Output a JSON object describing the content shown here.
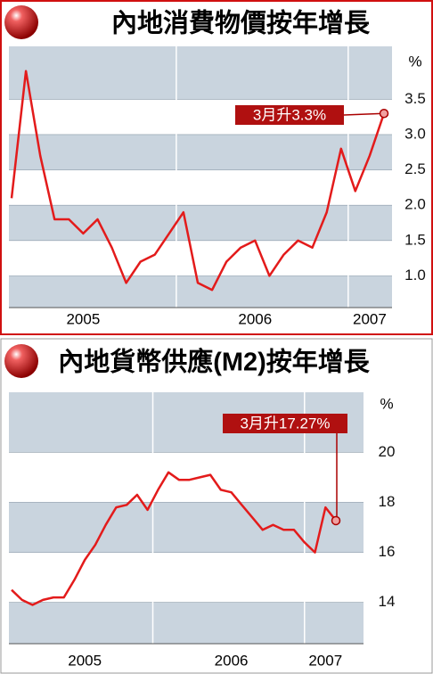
{
  "chart_data": [
    {
      "type": "line",
      "title": "內地消費物價按年增長",
      "ylabel": "%",
      "categories": [
        null,
        null,
        null,
        null,
        null,
        "2005",
        null,
        null,
        null,
        null,
        null,
        null,
        null,
        null,
        null,
        null,
        null,
        "2006",
        null,
        null,
        null,
        null,
        null,
        null,
        null,
        "2007",
        null
      ],
      "series": [
        {
          "color": "#e31b1b",
          "values": [
            2.1,
            3.9,
            2.7,
            1.8,
            1.8,
            1.6,
            1.8,
            1.4,
            0.9,
            1.2,
            1.3,
            1.6,
            1.9,
            0.9,
            0.8,
            1.2,
            1.4,
            1.5,
            1.0,
            1.3,
            1.5,
            1.4,
            1.9,
            2.8,
            2.2,
            2.7,
            3.3
          ]
        }
      ],
      "ylim": [
        0.55,
        4.25
      ],
      "yticks": [
        {
          "value": 1.0,
          "label": "1.0"
        },
        1.5,
        {
          "value": 2.0,
          "label": "2.0"
        },
        2.5,
        {
          "value": 3.0,
          "label": "3.0"
        },
        3.5
      ],
      "annotation": "3月升3.3%"
    },
    {
      "type": "line",
      "title": "內地貨幣供應(M2)按年增長",
      "ylabel": "%",
      "categories": [
        null,
        null,
        null,
        null,
        null,
        null,
        null,
        "2005",
        null,
        null,
        null,
        null,
        null,
        null,
        null,
        null,
        null,
        null,
        null,
        null,
        null,
        "2006",
        null,
        null,
        null,
        null,
        null,
        null,
        null,
        null,
        "2007",
        null
      ],
      "series": [
        {
          "color": "#e31b1b",
          "values": [
            14.5,
            14.1,
            13.9,
            14.1,
            14.2,
            14.2,
            14.9,
            15.7,
            16.3,
            17.1,
            17.8,
            17.9,
            18.3,
            17.7,
            18.5,
            19.2,
            18.9,
            18.9,
            19.0,
            19.1,
            18.5,
            18.4,
            17.9,
            17.4,
            16.9,
            17.1,
            16.9,
            16.9,
            16.4,
            16.0,
            17.8,
            17.27
          ]
        }
      ],
      "ylim": [
        12.35,
        22.4
      ],
      "yticks": [
        14,
        16,
        18,
        20
      ],
      "annotation": "3月升17.27%"
    }
  ]
}
